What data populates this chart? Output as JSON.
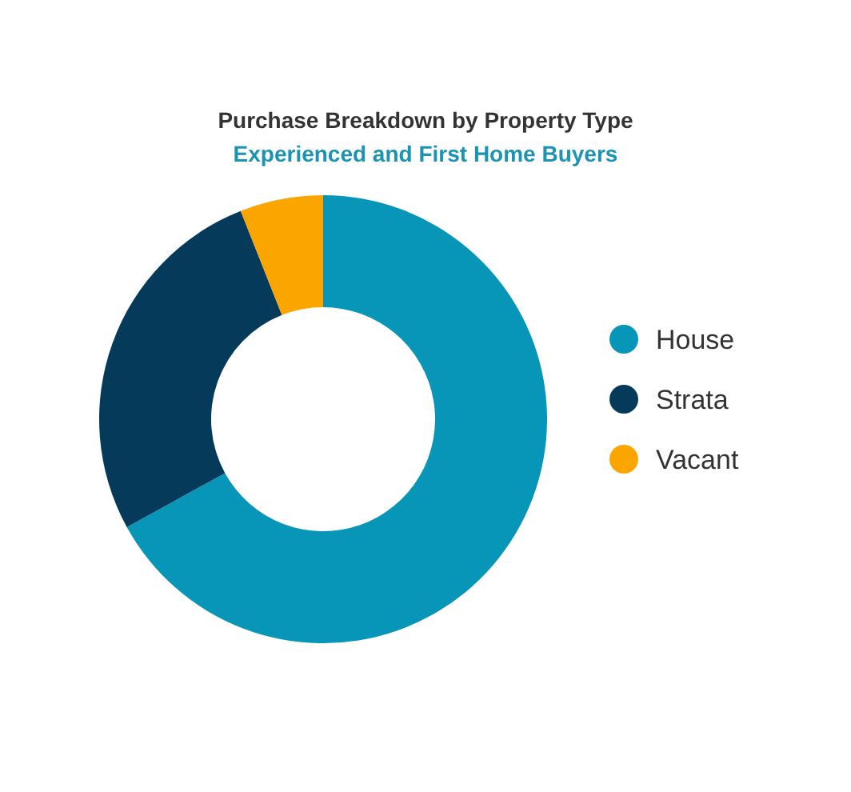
{
  "chart_data": {
    "type": "donut",
    "title": "Purchase Breakdown by Property Type",
    "subtitle": "Experienced and First Home Buyers",
    "categories": [
      "House",
      "Strata",
      "Vacant"
    ],
    "values": [
      67,
      27,
      6
    ],
    "colors": [
      "#0796b8",
      "#053a5a",
      "#fba500"
    ],
    "legend": "right"
  }
}
